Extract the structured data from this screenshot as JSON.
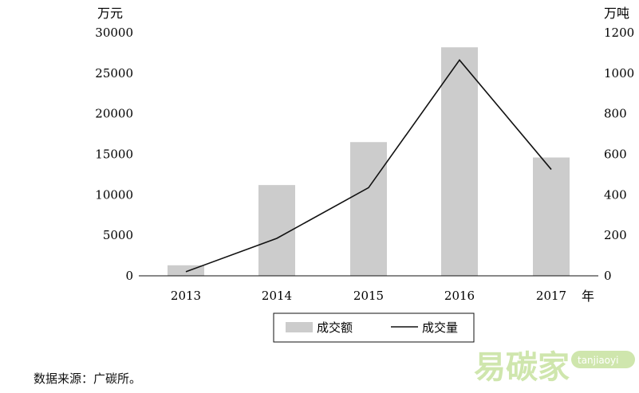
{
  "chart_data": {
    "type": "bar+line",
    "categories": [
      "2013",
      "2014",
      "2015",
      "2016",
      "2017"
    ],
    "x_unit": "年",
    "series": [
      {
        "name": "成交额",
        "type": "bar",
        "axis": "left",
        "values": [
          1300,
          11200,
          16500,
          28200,
          14600
        ],
        "color": "#cccccc"
      },
      {
        "name": "成交量",
        "type": "line",
        "axis": "right",
        "values": [
          20,
          185,
          435,
          1065,
          525
        ],
        "color": "#111111"
      }
    ],
    "left_axis": {
      "unit": "万元",
      "ylim": [
        0,
        30000
      ],
      "ticks": [
        "0",
        "5000",
        "10000",
        "15000",
        "20000",
        "25000",
        "30000"
      ]
    },
    "right_axis": {
      "unit": "万吨",
      "ylim": [
        0,
        1200
      ],
      "ticks": [
        "0",
        "200",
        "400",
        "600",
        "800",
        "1000",
        "1200"
      ]
    },
    "legend_position": "bottom-center",
    "grid": false
  },
  "source_note": "数据来源：广碳所。",
  "watermark": {
    "text": "易碳家",
    "site": "tanjiaoyi",
    "color": "#8dc63f"
  }
}
